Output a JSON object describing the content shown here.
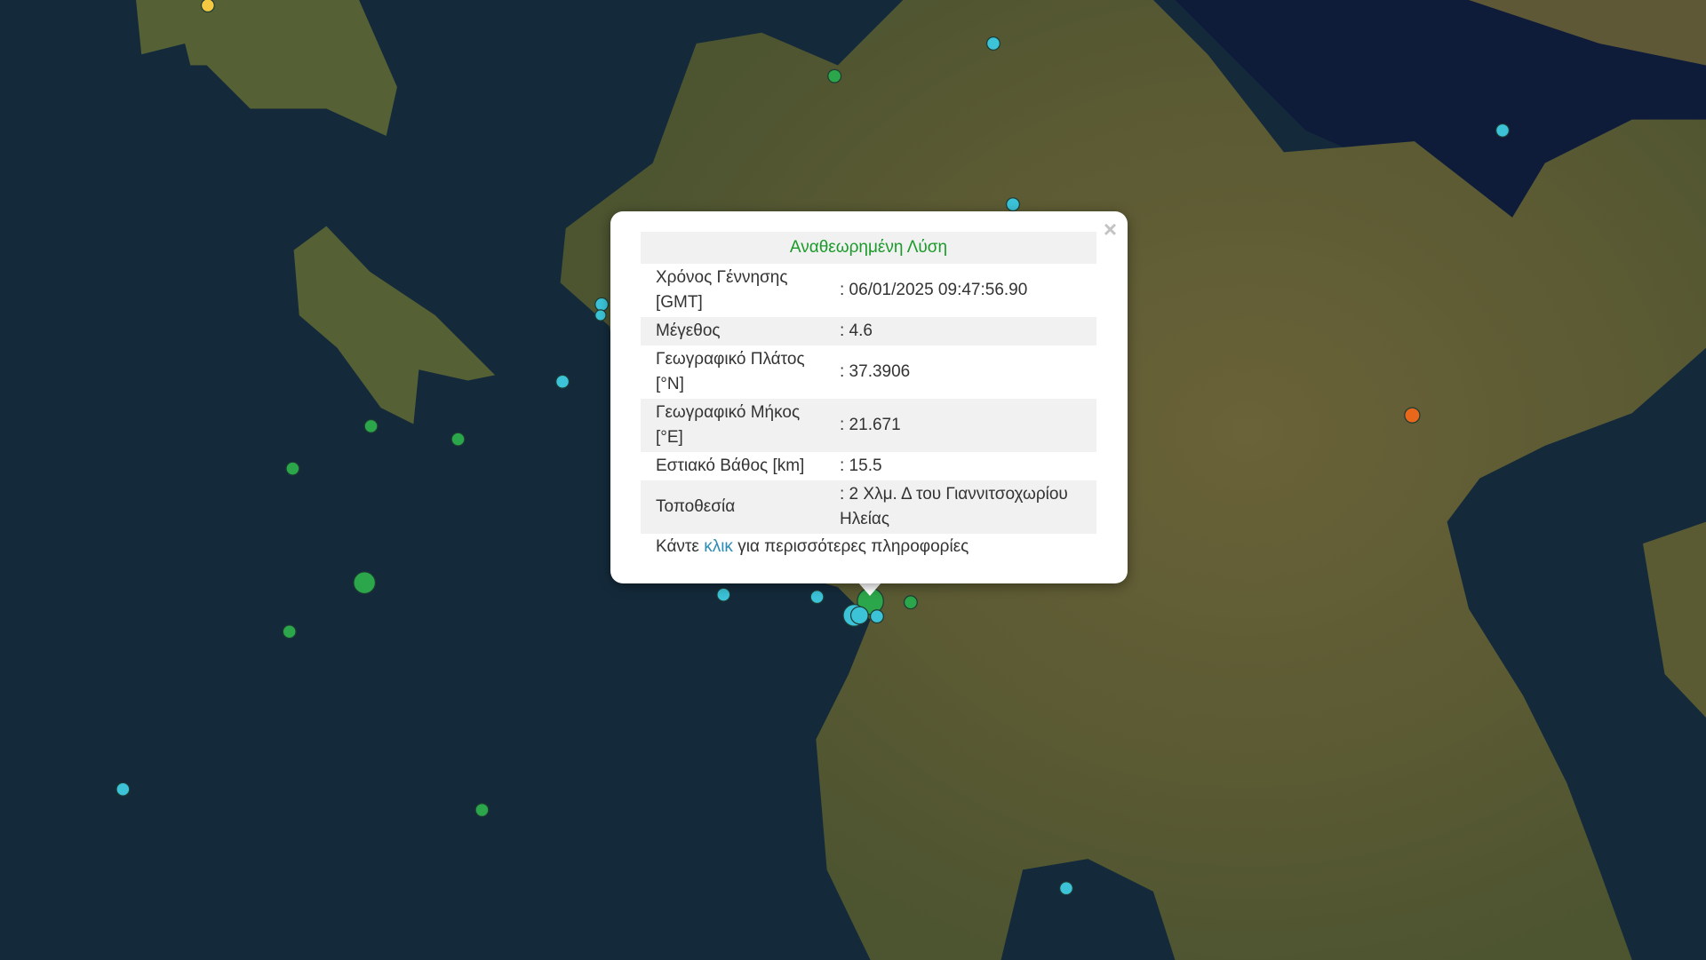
{
  "map": {
    "colors": {
      "sea": "#13283a",
      "deep_sea": "#0d1a33",
      "land": "#5d5a34",
      "land_light": "#7b7146"
    },
    "marker_colors": {
      "green": "#2ca64a",
      "cyan": "#3cc3d8",
      "yellow": "#f5c842",
      "orange": "#e8671b"
    }
  },
  "popup": {
    "close_icon": "×",
    "title": "Αναθεωρημένη Λύση",
    "rows": [
      {
        "label": "Χρόνος Γέννησης [GMT]",
        "value": ": 06/01/2025 09:47:56.90"
      },
      {
        "label": "Μέγεθος",
        "value": ": 4.6"
      },
      {
        "label": "Γεωγραφικό Πλάτος [°N]",
        "value": ": 37.3906"
      },
      {
        "label": "Γεωγραφικό Μήκος [°E]",
        "value": ": 21.671"
      },
      {
        "label": "Εστιακό Βάθος [km]",
        "value": ": 15.5"
      },
      {
        "label": "Τοποθεσία",
        "value": ": 2 Χλμ. Δ του Γιαννιτσοχωρίου Ηλείας"
      }
    ],
    "more_prefix": "Κάντε ",
    "more_link": "κλικ",
    "more_suffix": " για περισσότερες πληροφορίες"
  }
}
